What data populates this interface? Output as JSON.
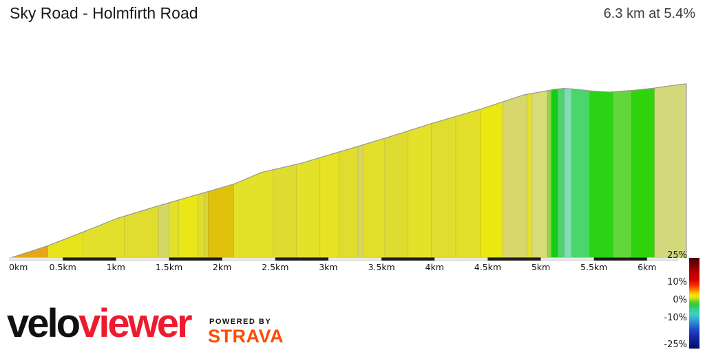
{
  "header": {
    "title": "Sky Road - Holmfirth Road",
    "stat": "6.3 km at 5.4%"
  },
  "chart_data": {
    "type": "area",
    "title": "Sky Road - Holmfirth Road",
    "summary": {
      "distance_km": 6.3,
      "avg_gradient_pct": 5.4
    },
    "x_ticks": [
      {
        "km": 0,
        "label": "0km"
      },
      {
        "km": 0.5,
        "label": "0.5km"
      },
      {
        "km": 1,
        "label": "1km"
      },
      {
        "km": 1.5,
        "label": "1.5km"
      },
      {
        "km": 2,
        "label": "2km"
      },
      {
        "km": 2.5,
        "label": "2.5km"
      },
      {
        "km": 3,
        "label": "3km"
      },
      {
        "km": 3.5,
        "label": "3.5km"
      },
      {
        "km": 4,
        "label": "4km"
      },
      {
        "km": 4.5,
        "label": "4.5km"
      },
      {
        "km": 5,
        "label": "5km"
      },
      {
        "km": 5.5,
        "label": "5.5km"
      },
      {
        "km": 6,
        "label": "6km"
      }
    ],
    "profile": [
      [
        0.0,
        0.0
      ],
      [
        0.04,
        0.008
      ],
      [
        0.36,
        0.071
      ],
      [
        0.69,
        0.15
      ],
      [
        1.01,
        0.228
      ],
      [
        1.4,
        0.3
      ],
      [
        1.89,
        0.386
      ],
      [
        2.11,
        0.425
      ],
      [
        2.37,
        0.492
      ],
      [
        2.76,
        0.547
      ],
      [
        3.15,
        0.618
      ],
      [
        3.54,
        0.689
      ],
      [
        3.99,
        0.776
      ],
      [
        4.45,
        0.858
      ],
      [
        4.84,
        0.937
      ],
      [
        5.03,
        0.957
      ],
      [
        5.13,
        0.969
      ],
      [
        5.22,
        0.974
      ],
      [
        5.32,
        0.97
      ],
      [
        5.48,
        0.959
      ],
      [
        5.65,
        0.953
      ],
      [
        5.87,
        0.963
      ],
      [
        6.07,
        0.976
      ],
      [
        6.23,
        0.99
      ],
      [
        6.37,
        1.0
      ]
    ],
    "gradient_bands": [
      {
        "from": 0.0,
        "to": 0.04,
        "color": "#e4e79c"
      },
      {
        "from": 0.04,
        "to": 0.36,
        "color": "#e7a615"
      },
      {
        "from": 0.36,
        "to": 0.69,
        "color": "#e8e41c"
      },
      {
        "from": 0.69,
        "to": 1.08,
        "color": "#e3e02b"
      },
      {
        "from": 1.08,
        "to": 1.4,
        "color": "#e0dd2e"
      },
      {
        "from": 1.4,
        "to": 1.5,
        "color": "#d5d765"
      },
      {
        "from": 1.5,
        "to": 1.59,
        "color": "#e3e02b"
      },
      {
        "from": 1.59,
        "to": 1.77,
        "color": "#eae617"
      },
      {
        "from": 1.77,
        "to": 1.83,
        "color": "#e0dd2e"
      },
      {
        "from": 1.83,
        "to": 1.87,
        "color": "#d9d63a"
      },
      {
        "from": 1.87,
        "to": 2.11,
        "color": "#dfc10c"
      },
      {
        "from": 2.11,
        "to": 2.48,
        "color": "#e4e12a"
      },
      {
        "from": 2.48,
        "to": 2.7,
        "color": "#dedb31"
      },
      {
        "from": 2.7,
        "to": 2.92,
        "color": "#e4e12a"
      },
      {
        "from": 2.92,
        "to": 3.1,
        "color": "#e7e322"
      },
      {
        "from": 3.1,
        "to": 3.28,
        "color": "#e0dd2e"
      },
      {
        "from": 3.28,
        "to": 3.33,
        "color": "#d8d75c"
      },
      {
        "from": 3.33,
        "to": 3.53,
        "color": "#e3e02b"
      },
      {
        "from": 3.53,
        "to": 3.75,
        "color": "#dedb31"
      },
      {
        "from": 3.75,
        "to": 3.97,
        "color": "#e4e12a"
      },
      {
        "from": 3.97,
        "to": 4.2,
        "color": "#e0dd2e"
      },
      {
        "from": 4.2,
        "to": 4.43,
        "color": "#e3e02b"
      },
      {
        "from": 4.43,
        "to": 4.64,
        "color": "#ebe711"
      },
      {
        "from": 4.64,
        "to": 4.87,
        "color": "#d7d76d"
      },
      {
        "from": 4.87,
        "to": 4.92,
        "color": "#e3e02b"
      },
      {
        "from": 4.92,
        "to": 5.06,
        "color": "#d8dc77"
      },
      {
        "from": 5.06,
        "to": 5.1,
        "color": "#8ed44e"
      },
      {
        "from": 5.1,
        "to": 5.16,
        "color": "#16cb16"
      },
      {
        "from": 5.16,
        "to": 5.22,
        "color": "#4cd470"
      },
      {
        "from": 5.22,
        "to": 5.29,
        "color": "#80dcb4"
      },
      {
        "from": 5.29,
        "to": 5.46,
        "color": "#49d66b"
      },
      {
        "from": 5.46,
        "to": 5.68,
        "color": "#2ad313"
      },
      {
        "from": 5.68,
        "to": 5.85,
        "color": "#63d73a"
      },
      {
        "from": 5.85,
        "to": 6.07,
        "color": "#2fd40c"
      },
      {
        "from": 6.07,
        "to": 6.37,
        "color": "#d3d87c"
      }
    ],
    "axis": {
      "dark_intervals": [
        [
          0.5,
          1
        ],
        [
          1.5,
          2
        ],
        [
          2.5,
          3
        ],
        [
          3.5,
          4
        ],
        [
          4.5,
          5
        ],
        [
          5.5,
          6
        ]
      ],
      "bar_end_km": 6.29
    },
    "legend": {
      "labels": [
        {
          "text": "25%",
          "value": 25
        },
        {
          "text": "10%",
          "value": 10
        },
        {
          "text": "0%",
          "value": 0
        },
        {
          "text": "-10%",
          "value": -10
        },
        {
          "text": "-25%",
          "value": -25
        }
      ],
      "gradient_stops": [
        [
          0.0,
          "#4a0000"
        ],
        [
          0.08,
          "#7d0000"
        ],
        [
          0.16,
          "#b40000"
        ],
        [
          0.24,
          "#d90000"
        ],
        [
          0.3,
          "#ee2c00"
        ],
        [
          0.35,
          "#fd7a00"
        ],
        [
          0.39,
          "#fdc500"
        ],
        [
          0.42,
          "#f2e713"
        ],
        [
          0.45,
          "#c0e01e"
        ],
        [
          0.49,
          "#54cd2c"
        ],
        [
          0.53,
          "#2bcb4a"
        ],
        [
          0.57,
          "#35cf9b"
        ],
        [
          0.62,
          "#3fcfc4"
        ],
        [
          0.67,
          "#35aed3"
        ],
        [
          0.73,
          "#2a7bd0"
        ],
        [
          0.8,
          "#1f46c4"
        ],
        [
          0.88,
          "#1226a0"
        ],
        [
          1.0,
          "#020d64"
        ]
      ],
      "position": "right"
    }
  },
  "footer": {
    "brand_prefix": "velo",
    "brand_suffix": "viewer",
    "powered_by": "POWERED BY",
    "partner": "STRAVA"
  },
  "colors": {
    "brand_prefix": "#111111",
    "brand_suffix": "#ed1b2f",
    "partner": "#fc4c02",
    "outline": "#9b9b93"
  }
}
